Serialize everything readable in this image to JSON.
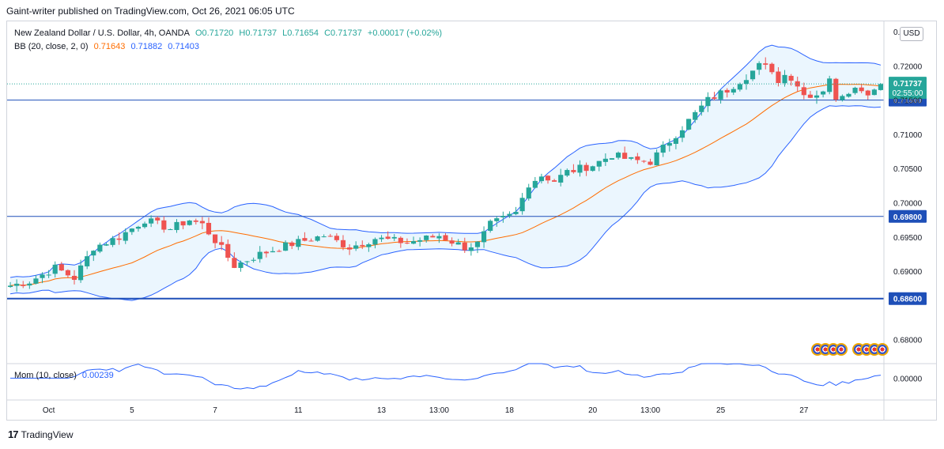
{
  "header": {
    "text": "Gaint-writer published on TradingView.com, Oct 26, 2021 06:05 UTC"
  },
  "legend": {
    "symbol": "New Zealand Dollar / U.S. Dollar, 4h, OANDA",
    "open": "O0.71720",
    "high": "H0.71737",
    "low": "L0.71654",
    "close": "C0.71737",
    "change": "+0.00017 (+0.02%)",
    "bb_label": "BB (20, close, 2, 0)",
    "bb_basis": "0.71643",
    "bb_upper": "0.71882",
    "bb_lower": "0.71403",
    "mom_label": "Mom (10, close)",
    "mom_value": "0.00239"
  },
  "currency_button": "USD",
  "footer": {
    "brand": "TradingView"
  },
  "colors": {
    "up": "#26a69a",
    "down": "#ef5350",
    "band": "#2962ff",
    "basis": "#ff6d00",
    "band_fill": "#e3f2fd",
    "hline": "#1e4fb8",
    "price_tag": "#26a69a",
    "mom": "#2962ff"
  },
  "chart_data": {
    "type": "candlestick",
    "ylim": [
      0.6765,
      0.7265
    ],
    "y_ticks": [
      "0.72500",
      "0.72000",
      "0.71500",
      "0.71000",
      "0.70500",
      "0.70000",
      "0.69500",
      "0.69000",
      "0.68000"
    ],
    "y_tick_values": [
      0.725,
      0.72,
      0.715,
      0.71,
      0.705,
      0.7,
      0.695,
      0.69,
      0.68
    ],
    "x_ticks": [
      "Oct",
      "5",
      "7",
      "11",
      "13",
      "13:00",
      "18",
      "20",
      "13:00",
      "25",
      "27"
    ],
    "x_tick_index": [
      6,
      19,
      32,
      45,
      58,
      67,
      78,
      91,
      100,
      111,
      124
    ],
    "horizontal_levels": [
      {
        "value": 0.715,
        "label": "0.71500"
      },
      {
        "value": 0.698,
        "label": "0.69800"
      },
      {
        "value": 0.686,
        "label": "0.68600"
      }
    ],
    "last_price": {
      "value": 0.71737,
      "label": "0.71737",
      "countdown": "02:55:00"
    },
    "mom_ylim": [
      -0.012,
      0.008
    ],
    "mom_tick": "0.00000",
    "mom_tick_value": 0.0
  }
}
